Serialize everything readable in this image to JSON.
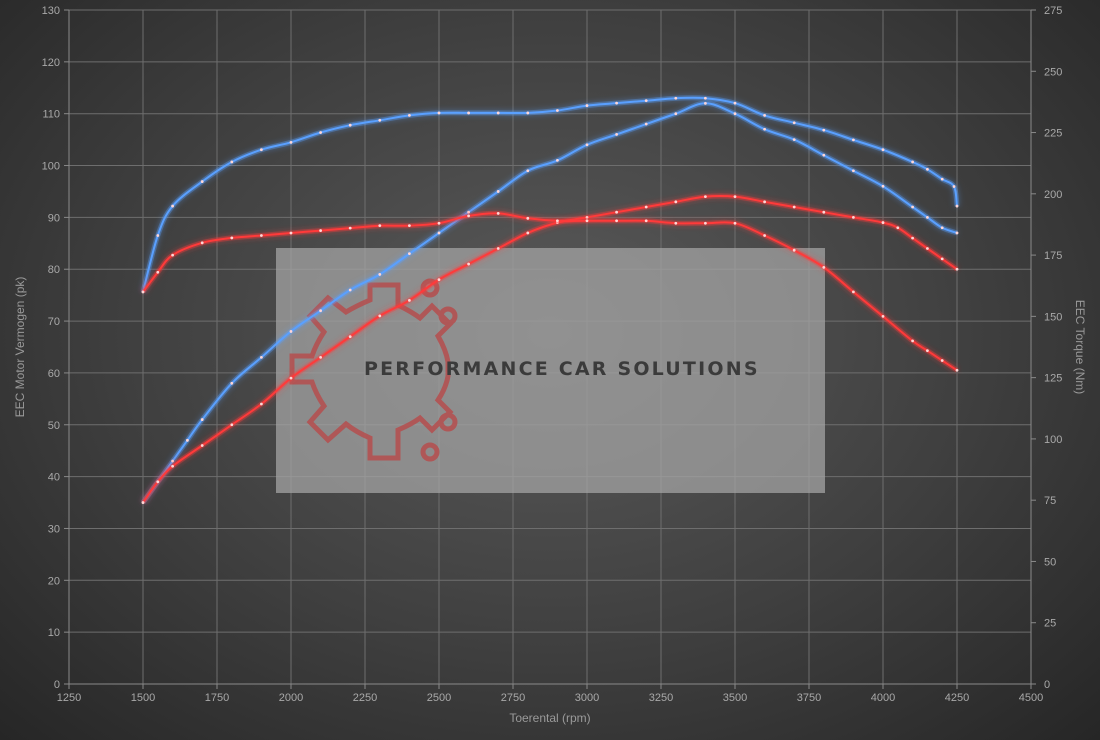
{
  "chart_data": {
    "type": "line",
    "xlabel": "Toerental (rpm)",
    "ylabel_left": "EEC Motor Vermogen (pk)",
    "ylabel_right": "EEC Torque (Nm)",
    "xlim": [
      1250,
      4500
    ],
    "ylim_left": [
      0,
      130
    ],
    "ylim_right": [
      0,
      275
    ],
    "x_ticks": [
      1250,
      1500,
      1750,
      2000,
      2250,
      2500,
      2750,
      3000,
      3250,
      3500,
      3750,
      4000,
      4250,
      4500
    ],
    "y_left_ticks": [
      0,
      10,
      20,
      30,
      40,
      50,
      60,
      70,
      80,
      90,
      100,
      110,
      120,
      130
    ],
    "y_right_ticks": [
      0,
      25,
      50,
      75,
      100,
      125,
      150,
      175,
      200,
      225,
      250,
      275
    ],
    "grid": true,
    "series": [
      {
        "axis": "left",
        "color": "#5aa0ff",
        "x": [
          1500,
          1550,
          1600,
          1650,
          1700,
          1800,
          1900,
          2000,
          2100,
          2200,
          2300,
          2400,
          2500,
          2600,
          2700,
          2800,
          2900,
          3000,
          3100,
          3200,
          3300,
          3400,
          3500,
          3600,
          3700,
          3800,
          3900,
          4000,
          4100,
          4150,
          4200,
          4250
        ],
        "values": [
          35,
          39,
          43,
          47,
          51,
          58,
          63,
          68,
          72,
          76,
          79,
          83,
          87,
          91,
          95,
          99,
          101,
          104,
          106,
          108,
          110,
          112,
          110,
          107,
          105,
          102,
          99,
          96,
          92,
          90,
          88,
          87
        ]
      },
      {
        "axis": "right",
        "color": "#5aa0ff",
        "x": [
          1500,
          1550,
          1600,
          1700,
          1800,
          1900,
          2000,
          2100,
          2200,
          2300,
          2400,
          2500,
          2600,
          2700,
          2800,
          2900,
          3000,
          3100,
          3200,
          3300,
          3400,
          3500,
          3600,
          3700,
          3800,
          3900,
          4000,
          4100,
          4150,
          4200,
          4240,
          4250
        ],
        "values": [
          160,
          183,
          195,
          205,
          213,
          218,
          221,
          225,
          228,
          230,
          232,
          233,
          233,
          233,
          233,
          234,
          236,
          237,
          238,
          239,
          239,
          237,
          232,
          229,
          226,
          222,
          218,
          213,
          210,
          206,
          203,
          195
        ]
      },
      {
        "axis": "left",
        "color": "#ff3a3a",
        "x": [
          1500,
          1550,
          1600,
          1700,
          1800,
          1900,
          2000,
          2100,
          2200,
          2300,
          2400,
          2500,
          2600,
          2700,
          2800,
          2900,
          3000,
          3100,
          3200,
          3300,
          3400,
          3500,
          3600,
          3700,
          3800,
          3900,
          4000,
          4050,
          4100,
          4150,
          4200,
          4250
        ],
        "values": [
          35,
          39,
          42,
          46,
          50,
          54,
          59,
          63,
          67,
          71,
          74,
          78,
          81,
          84,
          87,
          89,
          90,
          91,
          92,
          93,
          94,
          94,
          93,
          92,
          91,
          90,
          89,
          88,
          86,
          84,
          82,
          80
        ]
      },
      {
        "axis": "right",
        "color": "#ff3a3a",
        "x": [
          1500,
          1550,
          1600,
          1700,
          1800,
          1900,
          2000,
          2100,
          2200,
          2300,
          2400,
          2500,
          2600,
          2700,
          2800,
          2900,
          3000,
          3100,
          3200,
          3300,
          3400,
          3500,
          3600,
          3700,
          3800,
          3900,
          4000,
          4100,
          4150,
          4200,
          4250
        ],
        "values": [
          160,
          168,
          175,
          180,
          182,
          183,
          184,
          185,
          186,
          187,
          187,
          188,
          191,
          192,
          190,
          189,
          189,
          189,
          189,
          188,
          188,
          188,
          183,
          177,
          170,
          160,
          150,
          140,
          136,
          132,
          128
        ]
      }
    ]
  },
  "watermark": {
    "text": "PERFORMANCE CAR SOLUTIONS",
    "logo_color": "#b84a4a"
  }
}
